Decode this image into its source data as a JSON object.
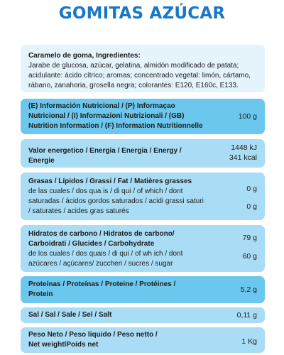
{
  "title": "GOMITAS AZÚCAR",
  "ingredients": {
    "heading": "Caramelo de goma, Ingredientes:",
    "lines": [
      "Jarabe de glucosa, azúcar, gelatina, almidón modificado de patata;",
      "acidulante: ácido cítrico; aromas; concentrado vegetal: limón, cártamo,",
      "rábano, zanahoria, grosella negra; colorantes: E120, E160c, E133."
    ]
  },
  "nutrition_header": {
    "lines": [
      "(E) Información Nutricional / (P) Informaçao",
      "Nutricional / (I) Informazioni Nutrizionali / (GB)",
      "Nutrition Information / (F) Information Nutritionnelle"
    ],
    "value": "100 g"
  },
  "energy": {
    "lines": [
      "Valor energetico / Energia / Energia / Energy /",
      "Energie"
    ],
    "kj": "1448 kJ",
    "kcal": "341 kcal"
  },
  "fats": {
    "label": "Grasas / Lípidos / Grassi / Fat / Matières grasses",
    "sub_lines": [
      "de las cuales / dos qua is / di qui / of which / dont",
      "saturadas / ácidos gordos saturados / acidi grassi saturi",
      "/ saturates / acides gras saturés"
    ],
    "value": "0 g",
    "sub_value": "0 g"
  },
  "carbs": {
    "label_lines": [
      "Hidratos de carbono / Hidratos de carbono/",
      "Carboidrati / Glucides / Carbohydrate"
    ],
    "sub_lines": [
      "de los cuales / dos quais / di qui / of wh ich / dont",
      "azúcares / açúcares/ zuccheri / sucres / sugar"
    ],
    "value": "79 g",
    "sub_value": "60 g"
  },
  "protein": {
    "lines": [
      "Proteínas / Proteínas / Proteine / Protéines /",
      "Protein"
    ],
    "value": "5,2 g"
  },
  "salt": {
    "label": "Sal / Sal / Sale / Sel / Salt",
    "value": "0,11 g"
  },
  "net_weight": {
    "lines": [
      "Peso Neto / Peso liquido / Peso netto /",
      "Net weightlPoids net"
    ],
    "value": "1 Kg"
  },
  "colors": {
    "title": "#1977c7",
    "light_box": "#e5f3fb",
    "mid_box": "#a9dcf5",
    "strong_box": "#6cc7ef"
  }
}
